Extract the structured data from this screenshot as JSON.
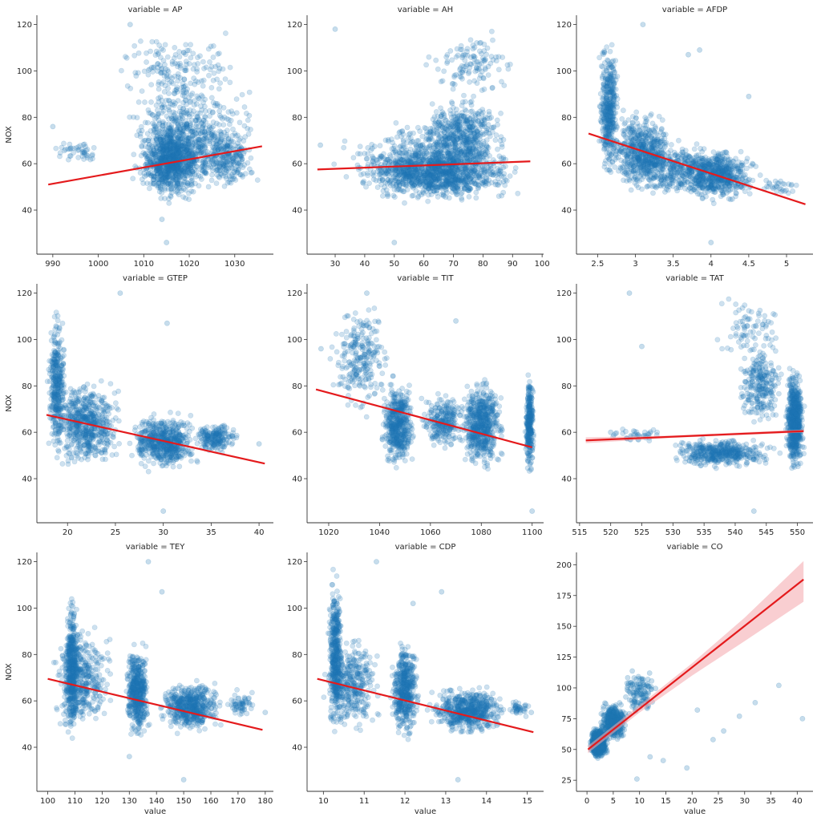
{
  "chart_data": {
    "type": "scatter",
    "title": "",
    "ylabel": "NOX",
    "xlabel": "value",
    "point_color": "#1f77b4",
    "fit_color": "#e41a1c",
    "ci_color": "#f4a6ac",
    "panels": [
      {
        "title": "variable = AP",
        "x_ticks": [
          990,
          1000,
          1010,
          1020,
          1030
        ],
        "y_ticks": [
          40,
          60,
          80,
          100,
          120
        ],
        "xlim": [
          986.5,
          1038.5
        ],
        "ylim": [
          21,
          124
        ],
        "fit": [
          [
            989,
            51
          ],
          [
            1036,
            67.5
          ]
        ],
        "ci": [],
        "clusters": [
          {
            "x": [
              1008,
              1024
            ],
            "y": [
              42,
              80
            ],
            "n": 900,
            "op": 0.22
          },
          {
            "x": [
              1004,
              1036
            ],
            "y": [
              46,
              100
            ],
            "n": 550,
            "op": 0.22
          },
          {
            "x": [
              1002,
              1034
            ],
            "y": [
              80,
              120
            ],
            "n": 160,
            "op": 0.22
          },
          {
            "x": [
              989,
              1002
            ],
            "y": [
              58,
              72
            ],
            "n": 45,
            "op": 0.22
          },
          {
            "x": [
              1020,
              1036
            ],
            "y": [
              46,
              80
            ],
            "n": 250,
            "op": 0.22
          }
        ],
        "points": [
          [
            1015,
            26
          ],
          [
            1014,
            36
          ],
          [
            1007,
            120
          ],
          [
            990,
            76
          ]
        ]
      },
      {
        "title": "variable = AH",
        "x_ticks": [
          30,
          40,
          50,
          60,
          70,
          80,
          90,
          100
        ],
        "y_ticks": [
          40,
          60,
          80,
          100,
          120
        ],
        "xlim": [
          20.5,
          100.5
        ],
        "ylim": [
          21,
          124
        ],
        "fit": [
          [
            24,
            57.5
          ],
          [
            96,
            61
          ]
        ],
        "ci": [],
        "clusters": [
          {
            "x": [
              35,
              95
            ],
            "y": [
              42,
              70
            ],
            "n": 1100,
            "op": 0.22
          },
          {
            "x": [
              55,
              90
            ],
            "y": [
              55,
              90
            ],
            "n": 500,
            "op": 0.22
          },
          {
            "x": [
              25,
              95
            ],
            "y": [
              45,
              80
            ],
            "n": 350,
            "op": 0.22
          },
          {
            "x": [
              60,
              92
            ],
            "y": [
              85,
              120
            ],
            "n": 120,
            "op": 0.22
          }
        ],
        "points": [
          [
            50,
            26
          ],
          [
            30,
            118
          ],
          [
            25,
            68
          ]
        ]
      },
      {
        "title": "variable = AFDP",
        "x_ticks": [
          2.5,
          3.0,
          3.5,
          4.0,
          4.5,
          5.0
        ],
        "y_ticks": [
          40,
          60,
          80,
          100,
          120
        ],
        "xlim": [
          2.22,
          5.35
        ],
        "ylim": [
          21,
          124
        ],
        "fit": [
          [
            2.38,
            73
          ],
          [
            5.25,
            42.5
          ]
        ],
        "ci": [],
        "clusters": [
          {
            "x": [
              2.5,
              2.8
            ],
            "y": [
              50,
              118
            ],
            "n": 400,
            "op": 0.22
          },
          {
            "x": [
              2.6,
              3.6
            ],
            "y": [
              45,
              85
            ],
            "n": 600,
            "op": 0.22
          },
          {
            "x": [
              3.5,
              4.7
            ],
            "y": [
              42,
              68
            ],
            "n": 600,
            "op": 0.22
          },
          {
            "x": [
              2.9,
              4.2
            ],
            "y": [
              45,
              70
            ],
            "n": 300,
            "op": 0.22
          },
          {
            "x": [
              4.6,
              5.2
            ],
            "y": [
              45,
              55
            ],
            "n": 30,
            "op": 0.22
          }
        ],
        "points": [
          [
            4.0,
            26
          ],
          [
            3.1,
            120
          ],
          [
            3.85,
            109
          ],
          [
            4.5,
            89
          ],
          [
            3.7,
            107
          ]
        ]
      },
      {
        "title": "variable = GTEP",
        "x_ticks": [
          20,
          25,
          30,
          35,
          40
        ],
        "y_ticks": [
          40,
          60,
          80,
          100,
          120
        ],
        "xlim": [
          16.8,
          41.5
        ],
        "ylim": [
          21,
          124
        ],
        "fit": [
          [
            17.8,
            67.5
          ],
          [
            40.6,
            46.5
          ]
        ],
        "ci": [],
        "clusters": [
          {
            "x": [
              17.8,
              20
            ],
            "y": [
              45,
              118
            ],
            "n": 350,
            "op": 0.22
          },
          {
            "x": [
              18,
              26
            ],
            "y": [
              42,
              85
            ],
            "n": 600,
            "op": 0.22
          },
          {
            "x": [
              26,
              34
            ],
            "y": [
              42,
              70
            ],
            "n": 600,
            "op": 0.22
          },
          {
            "x": [
              33,
              38
            ],
            "y": [
              50,
              65
            ],
            "n": 200,
            "op": 0.22
          }
        ],
        "points": [
          [
            30,
            26
          ],
          [
            25.5,
            120
          ],
          [
            30.4,
            107
          ],
          [
            40,
            55
          ]
        ]
      },
      {
        "title": "variable = TIT",
        "x_ticks": [
          1020,
          1040,
          1060,
          1080,
          1100
        ],
        "y_ticks": [
          40,
          60,
          80,
          100,
          120
        ],
        "xlim": [
          1011.5,
          1104.5
        ],
        "ylim": [
          21,
          124
        ],
        "fit": [
          [
            1015,
            78.5
          ],
          [
            1100,
            53.5
          ]
        ],
        "ci": [],
        "clusters": [
          {
            "x": [
              1040,
              1055
            ],
            "y": [
              42,
              85
            ],
            "n": 500,
            "op": 0.22
          },
          {
            "x": [
              1070,
              1090
            ],
            "y": [
              42,
              85
            ],
            "n": 600,
            "op": 0.22
          },
          {
            "x": [
              1097,
              1101
            ],
            "y": [
              40,
              88
            ],
            "n": 300,
            "op": 0.22
          },
          {
            "x": [
              1020,
              1045
            ],
            "y": [
              65,
              118
            ],
            "n": 250,
            "op": 0.22
          },
          {
            "x": [
              1055,
              1075
            ],
            "y": [
              50,
              80
            ],
            "n": 250,
            "op": 0.22
          }
        ],
        "points": [
          [
            1100,
            26
          ],
          [
            1017,
            96
          ],
          [
            1035,
            120
          ],
          [
            1070,
            108
          ]
        ]
      },
      {
        "title": "variable = TAT",
        "x_ticks": [
          515,
          520,
          525,
          530,
          535,
          540,
          545,
          550
        ],
        "y_ticks": [
          40,
          60,
          80,
          100,
          120
        ],
        "xlim": [
          514.5,
          552.5
        ],
        "ylim": [
          21,
          124
        ],
        "fit": [
          [
            516,
            56.5
          ],
          [
            551,
            60.5
          ]
        ],
        "ci": [
          [
            516,
            55.3,
            57.8
          ],
          [
            530,
            57.6,
            58.6
          ],
          [
            551,
            59.9,
            61.2
          ]
        ],
        "clusters": [
          {
            "x": [
              548,
              551.2
            ],
            "y": [
              40,
              90
            ],
            "n": 700,
            "op": 0.22
          },
          {
            "x": [
              528,
              548
            ],
            "y": [
              44,
              58
            ],
            "n": 450,
            "op": 0.22
          },
          {
            "x": [
              540,
              548
            ],
            "y": [
              60,
              100
            ],
            "n": 250,
            "op": 0.22
          },
          {
            "x": [
              535,
              550
            ],
            "y": [
              90,
              120
            ],
            "n": 80,
            "op": 0.22
          },
          {
            "x": [
              518,
              530
            ],
            "y": [
              55,
              62
            ],
            "n": 40,
            "op": 0.22
          }
        ],
        "points": [
          [
            543,
            26
          ],
          [
            523,
            120
          ],
          [
            525,
            97
          ],
          [
            520,
            60
          ]
        ]
      },
      {
        "title": "variable = TEY",
        "x_ticks": [
          100,
          110,
          120,
          130,
          140,
          150,
          160,
          170,
          180
        ],
        "y_ticks": [
          40,
          60,
          80,
          100,
          120
        ],
        "xlim": [
          96,
          183
        ],
        "ylim": [
          21,
          124
        ],
        "fit": [
          [
            100,
            69.5
          ],
          [
            179,
            47.5
          ]
        ],
        "ci": [],
        "clusters": [
          {
            "x": [
              106,
              112
            ],
            "y": [
              40,
              110
            ],
            "n": 450,
            "op": 0.22
          },
          {
            "x": [
              100,
              125
            ],
            "y": [
              45,
              95
            ],
            "n": 400,
            "op": 0.22
          },
          {
            "x": [
              128,
              138
            ],
            "y": [
              40,
              88
            ],
            "n": 500,
            "op": 0.22
          },
          {
            "x": [
              140,
              165
            ],
            "y": [
              45,
              70
            ],
            "n": 550,
            "op": 0.22
          },
          {
            "x": [
              165,
              178
            ],
            "y": [
              52,
              65
            ],
            "n": 60,
            "op": 0.22
          }
        ],
        "points": [
          [
            150,
            26
          ],
          [
            130,
            36
          ],
          [
            137,
            120
          ],
          [
            142,
            107
          ],
          [
            180,
            55
          ]
        ]
      },
      {
        "title": "variable = CDP",
        "x_ticks": [
          10,
          11,
          12,
          13,
          14,
          15
        ],
        "y_ticks": [
          40,
          60,
          80,
          100,
          120
        ],
        "xlim": [
          9.6,
          15.4
        ],
        "ylim": [
          21,
          124
        ],
        "fit": [
          [
            9.85,
            69.5
          ],
          [
            15.15,
            46.5
          ]
        ],
        "ci": [],
        "clusters": [
          {
            "x": [
              10.1,
              10.5
            ],
            "y": [
              42,
              118
            ],
            "n": 450,
            "op": 0.22
          },
          {
            "x": [
              9.9,
              11.5
            ],
            "y": [
              45,
              90
            ],
            "n": 350,
            "op": 0.22
          },
          {
            "x": [
              11.6,
              12.4
            ],
            "y": [
              42,
              88
            ],
            "n": 500,
            "op": 0.22
          },
          {
            "x": [
              12.5,
              14.6
            ],
            "y": [
              44,
              68
            ],
            "n": 600,
            "op": 0.22
          },
          {
            "x": [
              14.5,
              15.1
            ],
            "y": [
              52,
              62
            ],
            "n": 40,
            "op": 0.22
          }
        ],
        "points": [
          [
            13.3,
            26
          ],
          [
            12.2,
            102
          ],
          [
            12.9,
            107
          ],
          [
            11.3,
            120
          ],
          [
            15.1,
            55
          ]
        ]
      },
      {
        "title": "variable = CO",
        "x_ticks": [
          0,
          5,
          10,
          15,
          20,
          25,
          30,
          35,
          40
        ],
        "y_ticks": [
          25,
          50,
          75,
          100,
          125,
          150,
          175,
          200
        ],
        "xlim": [
          -2,
          43
        ],
        "ylim": [
          16,
          210
        ],
        "fit": [
          [
            0.2,
            50
          ],
          [
            41.2,
            188
          ]
        ],
        "ci": [
          [
            0.2,
            47,
            53
          ],
          [
            10,
            80,
            86
          ],
          [
            20,
            110,
            120
          ],
          [
            30,
            138,
            157
          ],
          [
            41.2,
            170,
            203
          ]
        ],
        "clusters": [
          {
            "x": [
              0.5,
              4
            ],
            "y": [
              42,
              68
            ],
            "n": 900,
            "op": 0.25
          },
          {
            "x": [
              2,
              8
            ],
            "y": [
              55,
              90
            ],
            "n": 400,
            "op": 0.25
          },
          {
            "x": [
              6,
              14
            ],
            "y": [
              75,
              118
            ],
            "n": 120,
            "op": 0.25
          }
        ],
        "points": [
          [
            9.5,
            26
          ],
          [
            19,
            35
          ],
          [
            14.5,
            41
          ],
          [
            21,
            82
          ],
          [
            24,
            58
          ],
          [
            26,
            65
          ],
          [
            29,
            77
          ],
          [
            32,
            88
          ],
          [
            36.5,
            102
          ],
          [
            41,
            75
          ],
          [
            12,
            44
          ]
        ]
      }
    ]
  }
}
